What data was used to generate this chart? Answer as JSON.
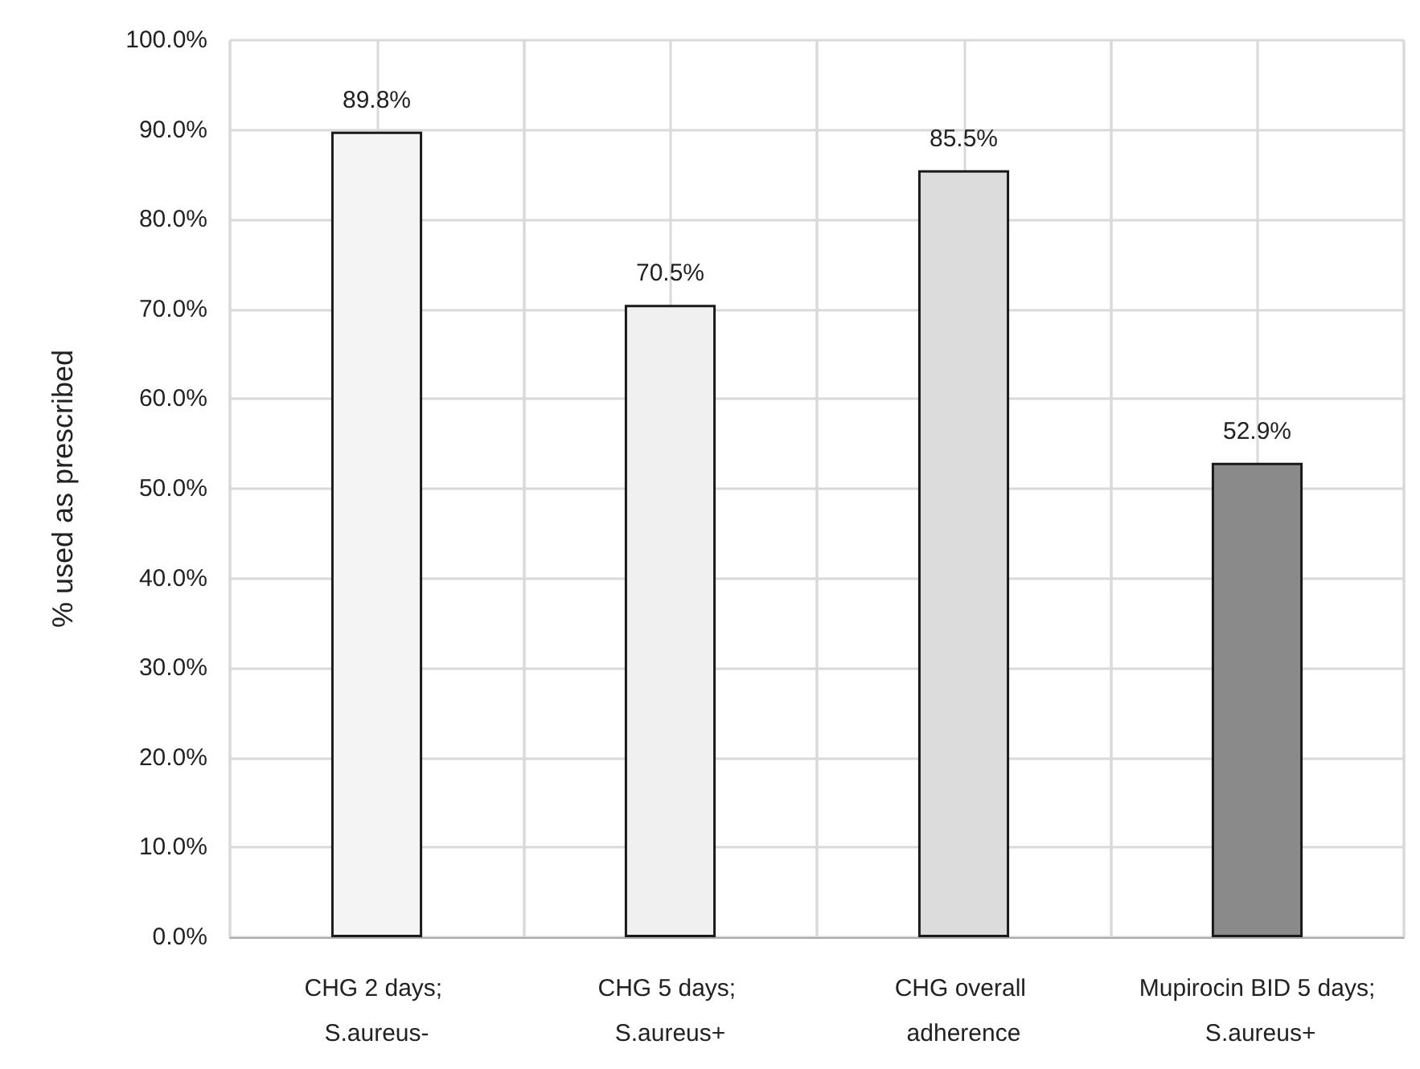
{
  "chart_data": {
    "type": "bar",
    "ylabel": "% used as prescribed",
    "categories": [
      "CHG 2 days; S.aureus-",
      "CHG 5 days; S.aureus+",
      "CHG overall adherence",
      "Mupirocin BID 5 days; S.aureus+"
    ],
    "values": [
      89.8,
      70.5,
      85.5,
      52.9
    ],
    "colors": [
      "#f4f4f4",
      "#f0f0f0",
      "#dcdcdc",
      "#8a8a8a"
    ],
    "value_labels": [
      "89.8%",
      "70.5%",
      "85.5%",
      "52.9%"
    ],
    "ylim": [
      0,
      100
    ],
    "yticks": [
      {
        "value": 0,
        "label": "0.0%"
      },
      {
        "value": 10,
        "label": "10.0%"
      },
      {
        "value": 20,
        "label": "20.0%"
      },
      {
        "value": 30,
        "label": "30.0%"
      },
      {
        "value": 40,
        "label": "40.0%"
      },
      {
        "value": 50,
        "label": "50.0%"
      },
      {
        "value": 60,
        "label": "60.0%"
      },
      {
        "value": 70,
        "label": "70.0%"
      },
      {
        "value": 80,
        "label": "80.0%"
      },
      {
        "value": 90,
        "label": "90.0%"
      },
      {
        "value": 100,
        "label": "100.0%"
      }
    ],
    "grid": true
  }
}
